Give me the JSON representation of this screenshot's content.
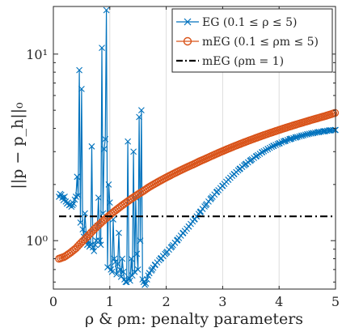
{
  "chart_data": {
    "type": "line",
    "xlabel": "ρ & ρm: penalty parameters",
    "ylabel": "||p − p_h||₀",
    "xlim": [
      0,
      5
    ],
    "ylim": [
      0.55,
      18
    ],
    "yscale": "log",
    "grid": "x-only",
    "xticks": [
      0,
      1,
      2,
      3,
      4,
      5
    ],
    "xtick_labels": [
      "0",
      "1",
      "2",
      "3",
      "4",
      "5"
    ],
    "yticks": [
      1,
      10
    ],
    "ytick_labels": [
      "10⁰",
      "10¹"
    ],
    "legend_position": "top-right",
    "series": [
      {
        "name": "EG (0.1 ≤ ρ ≤ 5)",
        "color": "#0072BD",
        "marker": "x",
        "x": [
          0.1,
          0.12,
          0.14,
          0.16,
          0.18,
          0.2,
          0.22,
          0.24,
          0.26,
          0.28,
          0.3,
          0.32,
          0.34,
          0.36,
          0.38,
          0.4,
          0.42,
          0.44,
          0.46,
          0.48,
          0.5,
          0.52,
          0.54,
          0.56,
          0.58,
          0.6,
          0.62,
          0.64,
          0.66,
          0.68,
          0.7,
          0.72,
          0.74,
          0.76,
          0.78,
          0.8,
          0.82,
          0.84,
          0.86,
          0.88,
          0.9,
          0.92,
          0.94,
          0.96,
          0.98,
          1.0,
          1.02,
          1.04,
          1.06,
          1.08,
          1.1,
          1.12,
          1.14,
          1.16,
          1.18,
          1.2,
          1.22,
          1.24,
          1.26,
          1.28,
          1.3,
          1.32,
          1.34,
          1.36,
          1.38,
          1.4,
          1.42,
          1.44,
          1.46,
          1.48,
          1.5,
          1.52,
          1.54,
          1.56,
          1.58,
          1.6,
          1.62,
          1.64,
          1.66,
          1.68,
          1.7,
          1.75,
          1.8,
          1.9,
          2.0,
          2.1,
          2.2,
          2.3,
          2.4,
          2.5,
          2.6,
          2.7,
          2.8,
          2.9,
          3.0,
          3.1,
          3.2,
          3.3,
          3.4,
          3.5,
          3.6,
          3.7,
          3.8,
          3.9,
          4.0,
          4.1,
          4.2,
          4.3,
          4.4,
          4.5,
          4.6,
          4.7,
          4.8,
          4.9,
          5.0
        ],
        "y": [
          1.72,
          1.78,
          1.76,
          1.7,
          1.65,
          1.72,
          1.62,
          1.58,
          1.6,
          1.55,
          1.56,
          1.52,
          1.55,
          1.58,
          1.66,
          1.72,
          2.2,
          1.75,
          8.2,
          1.25,
          6.5,
          1.15,
          1.05,
          1.4,
          1.1,
          0.95,
          1.0,
          0.93,
          0.95,
          3.2,
          0.92,
          0.88,
          0.95,
          1.0,
          1.2,
          1.7,
          1.0,
          0.95,
          10.8,
          1.4,
          3.1,
          3.5,
          17.2,
          0.72,
          2.0,
          1.6,
          0.7,
          0.68,
          1.3,
          0.8,
          0.77,
          0.66,
          0.75,
          1.1,
          0.7,
          0.64,
          0.8,
          0.68,
          0.62,
          0.6,
          0.6,
          3.4,
          0.63,
          0.61,
          0.8,
          0.65,
          3.0,
          0.68,
          1.7,
          0.85,
          0.7,
          4.6,
          1.0,
          5.0,
          0.62,
          0.6,
          0.58,
          0.59,
          0.62,
          0.65,
          0.67,
          0.7,
          0.74,
          0.8,
          0.86,
          0.93,
          1.01,
          1.1,
          1.19,
          1.3,
          1.42,
          1.55,
          1.69,
          1.83,
          1.97,
          2.12,
          2.27,
          2.42,
          2.56,
          2.7,
          2.84,
          2.98,
          3.1,
          3.22,
          3.32,
          3.42,
          3.51,
          3.58,
          3.65,
          3.72,
          3.77,
          3.82,
          3.86,
          3.9,
          3.92
        ]
      },
      {
        "name": "mEG (0.1 ≤ ρm ≤ 5)",
        "color": "#D95319",
        "marker": "o",
        "x": [
          0.1,
          0.2,
          0.3,
          0.4,
          0.5,
          0.6,
          0.7,
          0.8,
          0.9,
          1.0,
          1.1,
          1.2,
          1.3,
          1.4,
          1.5,
          1.6,
          1.7,
          1.8,
          1.9,
          2.0,
          2.1,
          2.2,
          2.3,
          2.4,
          2.5,
          2.6,
          2.7,
          2.8,
          2.9,
          3.0,
          3.1,
          3.2,
          3.3,
          3.4,
          3.5,
          3.6,
          3.7,
          3.8,
          3.9,
          4.0,
          4.1,
          4.2,
          4.3,
          4.4,
          4.5,
          4.6,
          4.7,
          4.8,
          4.9,
          5.0
        ],
        "y": [
          0.8,
          0.82,
          0.86,
          0.91,
          0.98,
          1.05,
          1.13,
          1.21,
          1.29,
          1.37,
          1.45,
          1.53,
          1.61,
          1.69,
          1.77,
          1.85,
          1.94,
          2.02,
          2.1,
          2.18,
          2.26,
          2.34,
          2.42,
          2.5,
          2.58,
          2.67,
          2.75,
          2.84,
          2.93,
          3.02,
          3.11,
          3.2,
          3.29,
          3.38,
          3.47,
          3.56,
          3.65,
          3.74,
          3.83,
          3.92,
          4.01,
          4.1,
          4.19,
          4.28,
          4.37,
          4.46,
          4.55,
          4.64,
          4.74,
          4.85
        ]
      },
      {
        "name": "mEG (ρm = 1)",
        "color": "#000000",
        "linestyle": "dash-dot",
        "x": [
          0.1,
          5.0
        ],
        "y": [
          1.35,
          1.35
        ]
      }
    ]
  }
}
